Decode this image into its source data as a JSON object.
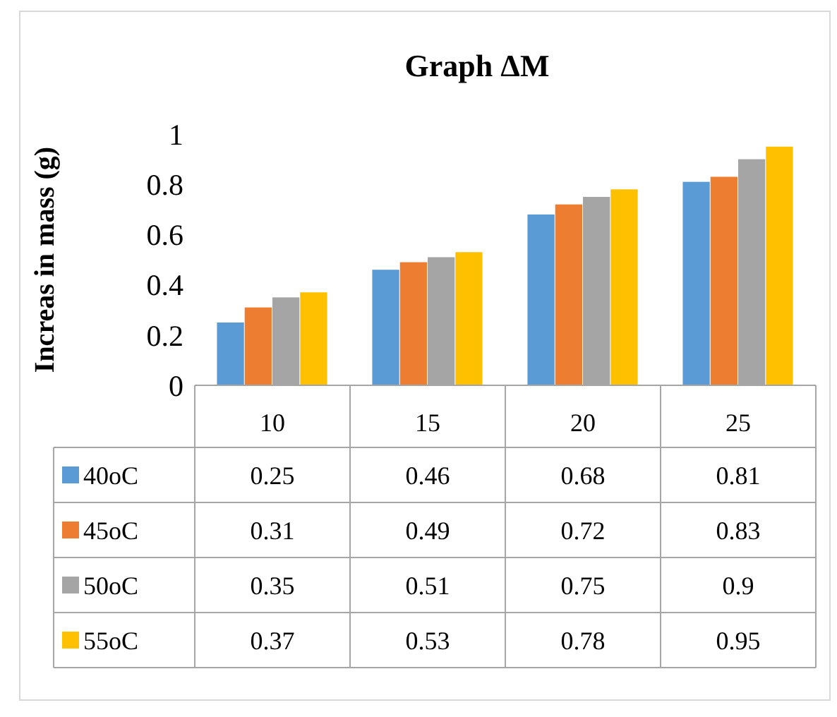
{
  "chart_data": {
    "type": "bar",
    "title": "Graph ΔM",
    "ylabel": "Increas in mass (g)",
    "categories": [
      "10",
      "15",
      "20",
      "25"
    ],
    "series": [
      {
        "name": "40oC",
        "color": "#5b9bd5",
        "values": [
          0.25,
          0.46,
          0.68,
          0.81
        ]
      },
      {
        "name": "45oC",
        "color": "#ed7d31",
        "values": [
          0.31,
          0.49,
          0.72,
          0.83
        ]
      },
      {
        "name": "50oC",
        "color": "#a5a5a5",
        "values": [
          0.35,
          0.51,
          0.75,
          0.9
        ]
      },
      {
        "name": "55oC",
        "color": "#ffc000",
        "values": [
          0.37,
          0.53,
          0.78,
          0.95
        ]
      }
    ],
    "ylim": [
      0,
      1
    ],
    "yticks": [
      0,
      0.2,
      0.4,
      0.6,
      0.8,
      1
    ],
    "grid": false,
    "legend": "bottom",
    "data_labels": true
  }
}
